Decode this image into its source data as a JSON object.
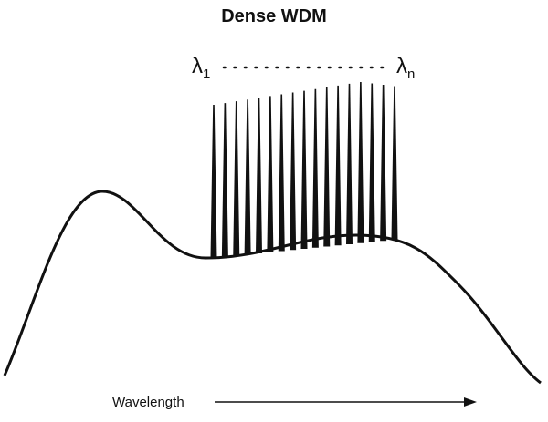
{
  "title": "Dense WDM",
  "first_channel": {
    "symbol": "λ",
    "subscript": "1"
  },
  "last_channel": {
    "symbol": "λ",
    "subscript": "n"
  },
  "x_axis_label": "Wavelength"
}
